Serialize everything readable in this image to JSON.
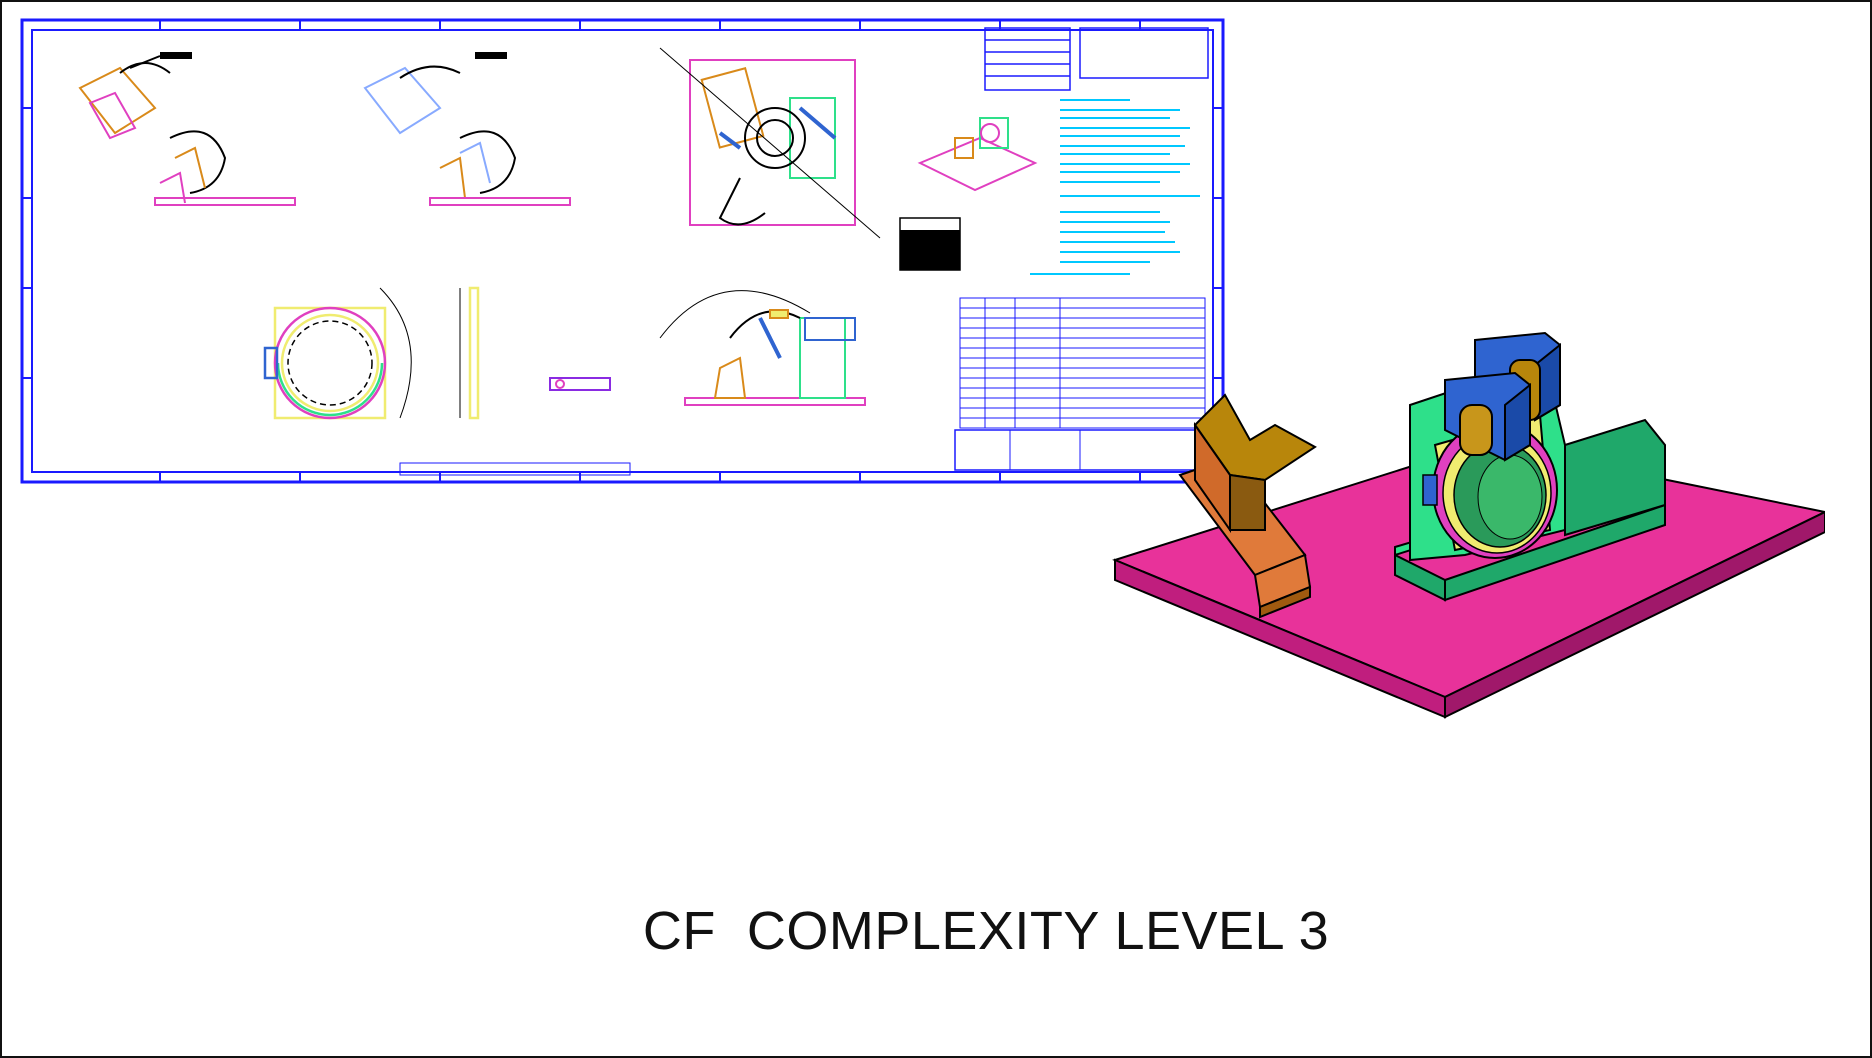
{
  "caption": "CF  COMPLEXITY LEVEL 3",
  "colors": {
    "border": "#1a1aff",
    "annotation": "#00c8ff",
    "linework": "#000000",
    "plate": "#e8329a",
    "bracket": "#d98a1a",
    "base": "#2ee08a",
    "ring": "#e040c0",
    "pad": "#f0ec70",
    "saddle": "#2f64d0",
    "pin": "#b8860b"
  }
}
